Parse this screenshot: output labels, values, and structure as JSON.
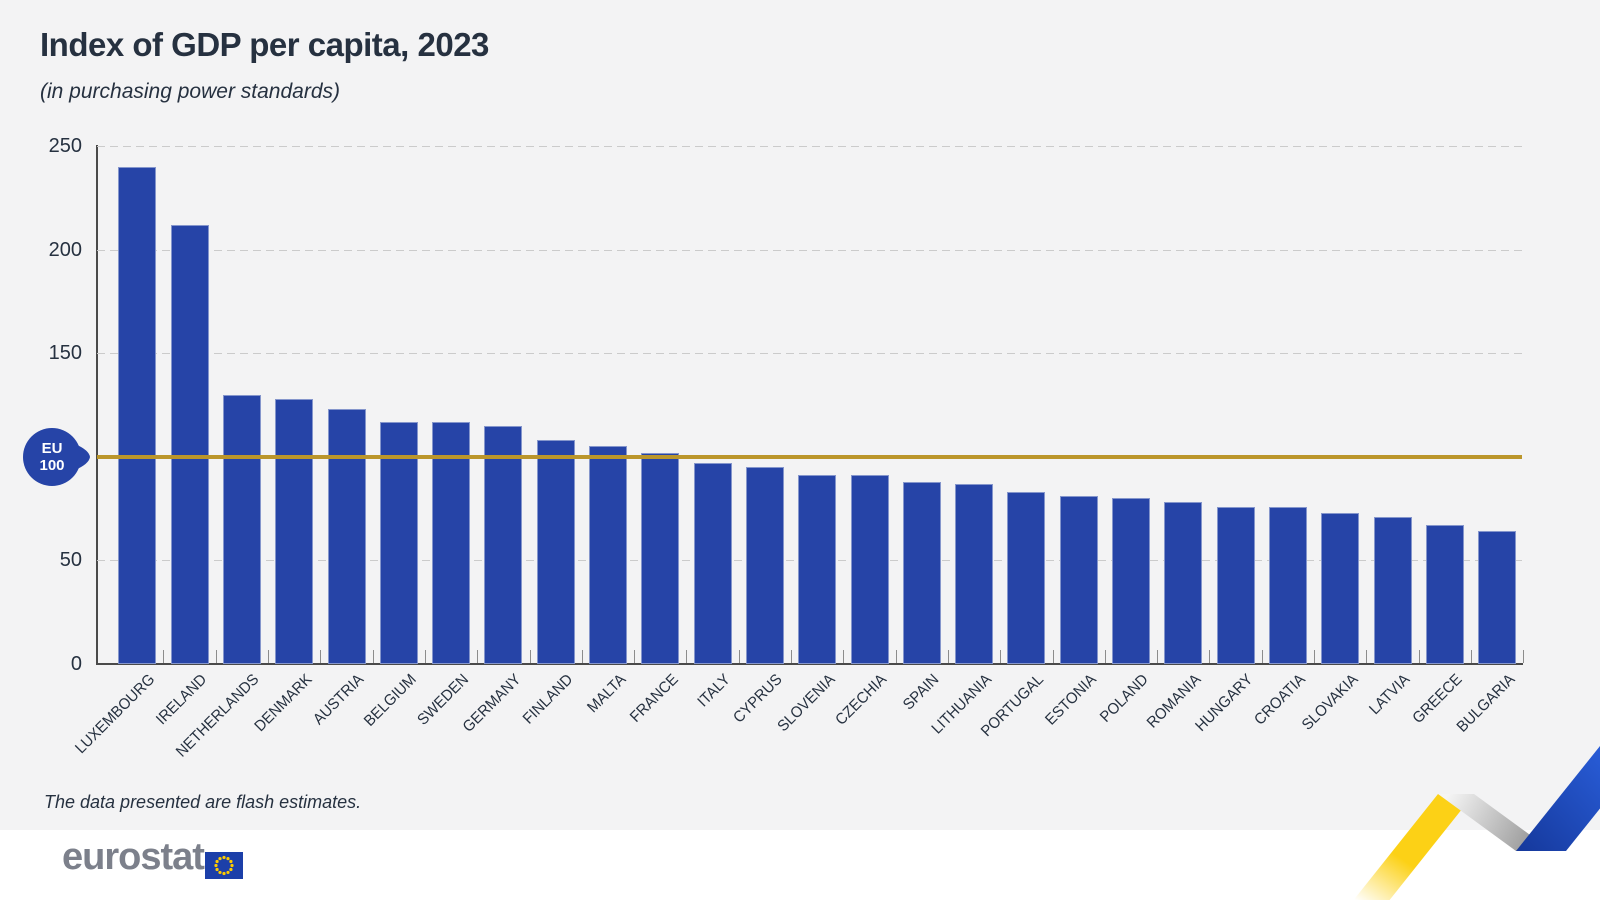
{
  "chart_data": {
    "type": "bar",
    "title": "Index of GDP per capita, 2023",
    "subtitle": "(in purchasing power standards)",
    "note": "The data presented are flash estimates.",
    "categories": [
      "LUXEMBOURG",
      "IRELAND",
      "NETHERLANDS",
      "DENMARK",
      "AUSTRIA",
      "BELGIUM",
      "SWEDEN",
      "GERMANY",
      "FINLAND",
      "MALTA",
      "FRANCE",
      "ITALY",
      "CYPRUS",
      "SLOVENIA",
      "CZECHIA",
      "SPAIN",
      "LITHUANIA",
      "PORTUGAL",
      "ESTONIA",
      "POLAND",
      "ROMANIA",
      "HUNGARY",
      "CROATIA",
      "SLOVAKIA",
      "LATVIA",
      "GREECE",
      "BULGARIA"
    ],
    "values": [
      240,
      212,
      130,
      128,
      123,
      117,
      117,
      115,
      108,
      105,
      102,
      97,
      95,
      91,
      91,
      88,
      87,
      83,
      81,
      80,
      78,
      76,
      76,
      73,
      71,
      67,
      64
    ],
    "ylim": [
      0,
      250
    ],
    "yticks_labeled": [
      250,
      200,
      150,
      50,
      0
    ],
    "dashed_gridlines": [
      250,
      200,
      150,
      50
    ],
    "grid": "horizontal dashed",
    "legend": "none",
    "bar_color": "#2644a7",
    "eu_line": {
      "value": 100,
      "color": "#bb962b",
      "badge_line1": "EU",
      "badge_line2": "100"
    }
  },
  "brand": {
    "logo_text": "eurostat"
  },
  "colors": {
    "background": "#f3f3f4",
    "footer": "#ffffff",
    "text": "#263140",
    "axis": "#4a4a4a",
    "gridline": "#cbcbcb",
    "tick": "#8c8c8c",
    "logo_gray": "#7c808b",
    "flag_blue": "#1c3fa9",
    "star_yellow": "#ffcc00",
    "ribbon_yellow": "#fcd116",
    "ribbon_blue_dark": "#15389b",
    "ribbon_blue_light": "#2f68ea"
  }
}
